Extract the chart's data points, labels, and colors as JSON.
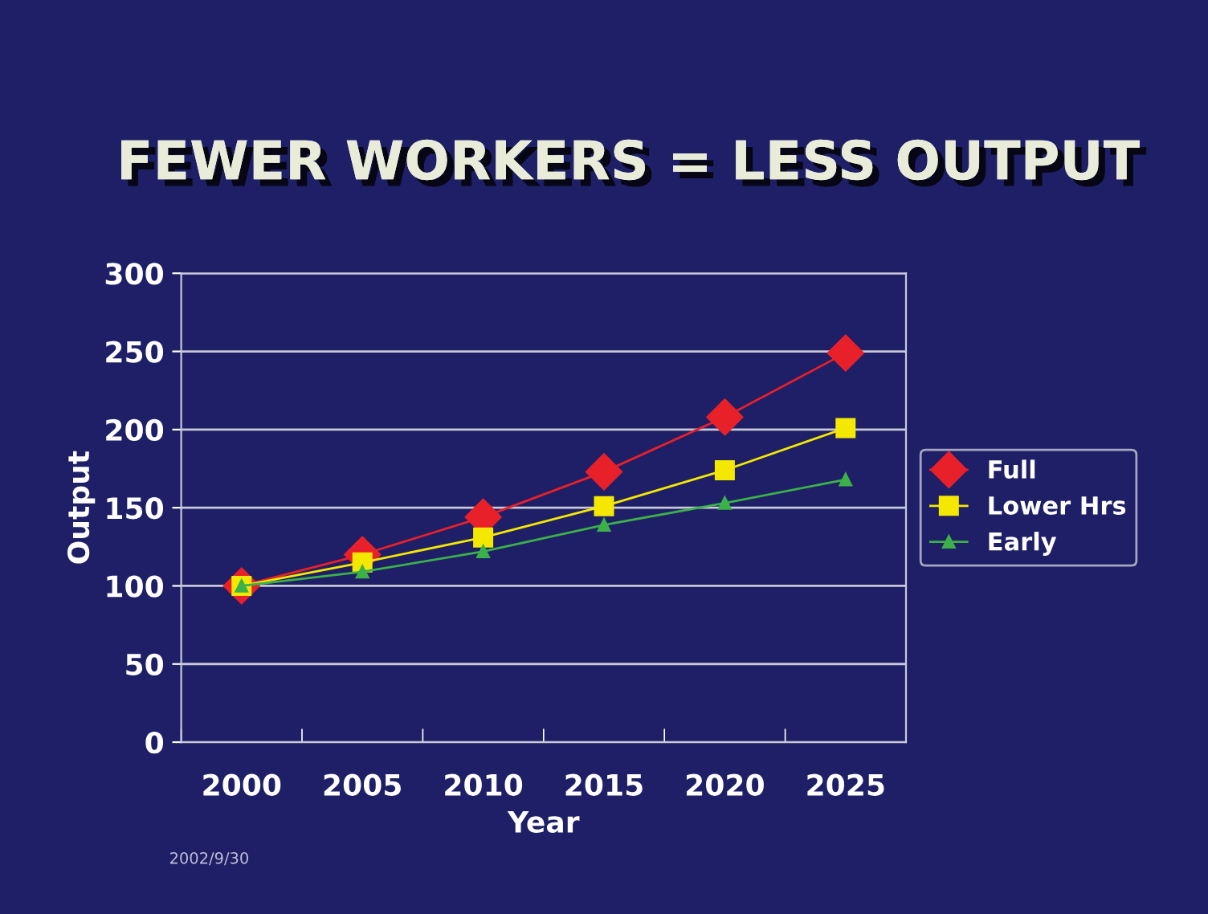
{
  "chart_data": {
    "type": "line",
    "title": "FEWER WORKERS = LESS OUTPUT",
    "xlabel": "Year",
    "ylabel": "Output",
    "categories": [
      "2000",
      "2005",
      "2010",
      "2015",
      "2020",
      "2025"
    ],
    "series": [
      {
        "name": "Full",
        "color": "#e8202a",
        "marker": "diamond",
        "values": [
          100,
          120,
          144,
          173,
          208,
          249
        ]
      },
      {
        "name": "Lower Hrs",
        "color": "#f5e800",
        "marker": "square",
        "values": [
          100,
          115,
          131,
          151,
          174,
          201
        ]
      },
      {
        "name": "Early",
        "color": "#3cb04a",
        "marker": "triangle",
        "values": [
          100,
          109,
          122,
          139,
          153,
          168
        ]
      }
    ],
    "ylim": [
      0,
      300
    ],
    "yticks": [
      0,
      50,
      100,
      150,
      200,
      250,
      300
    ],
    "grid": "y",
    "legend": "right",
    "annotations": [
      "2002/9/30"
    ]
  }
}
